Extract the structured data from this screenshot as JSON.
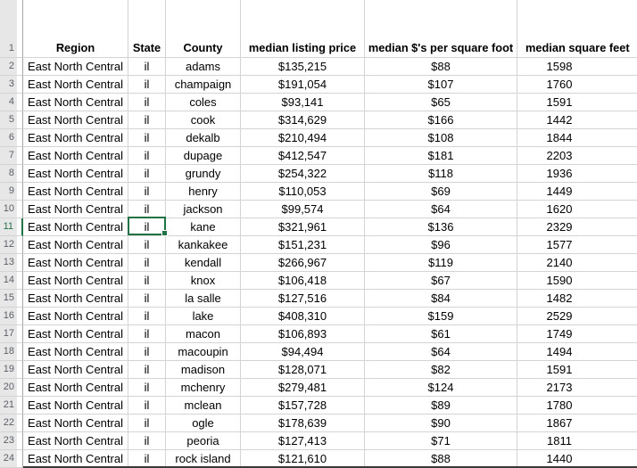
{
  "sheet": {
    "header_row_number": "1",
    "columns": [
      {
        "key": "region",
        "label": "Region"
      },
      {
        "key": "state",
        "label": "State"
      },
      {
        "key": "county",
        "label": "County"
      },
      {
        "key": "listing_price",
        "label": "median listing price"
      },
      {
        "key": "price_per_sqft",
        "label": "median $'s per square foot"
      },
      {
        "key": "square_feet",
        "label": "median square feet"
      }
    ],
    "rows": [
      {
        "n": "2",
        "region": "East North Central",
        "state": "il",
        "county": "adams",
        "listing_price": "$135,215",
        "price_per_sqft": "$88",
        "square_feet": "1598"
      },
      {
        "n": "3",
        "region": "East North Central",
        "state": "il",
        "county": "champaign",
        "listing_price": "$191,054",
        "price_per_sqft": "$107",
        "square_feet": "1760"
      },
      {
        "n": "4",
        "region": "East North Central",
        "state": "il",
        "county": "coles",
        "listing_price": "$93,141",
        "price_per_sqft": "$65",
        "square_feet": "1591"
      },
      {
        "n": "5",
        "region": "East North Central",
        "state": "il",
        "county": "cook",
        "listing_price": "$314,629",
        "price_per_sqft": "$166",
        "square_feet": "1442"
      },
      {
        "n": "6",
        "region": "East North Central",
        "state": "il",
        "county": "dekalb",
        "listing_price": "$210,494",
        "price_per_sqft": "$108",
        "square_feet": "1844"
      },
      {
        "n": "7",
        "region": "East North Central",
        "state": "il",
        "county": "dupage",
        "listing_price": "$412,547",
        "price_per_sqft": "$181",
        "square_feet": "2203"
      },
      {
        "n": "8",
        "region": "East North Central",
        "state": "il",
        "county": "grundy",
        "listing_price": "$254,322",
        "price_per_sqft": "$118",
        "square_feet": "1936"
      },
      {
        "n": "9",
        "region": "East North Central",
        "state": "il",
        "county": "henry",
        "listing_price": "$110,053",
        "price_per_sqft": "$69",
        "square_feet": "1449"
      },
      {
        "n": "10",
        "region": "East North Central",
        "state": "il",
        "county": "jackson",
        "listing_price": "$99,574",
        "price_per_sqft": "$64",
        "square_feet": "1620"
      },
      {
        "n": "11",
        "region": "East North Central",
        "state": "il",
        "county": "kane",
        "listing_price": "$321,961",
        "price_per_sqft": "$136",
        "square_feet": "2329"
      },
      {
        "n": "12",
        "region": "East North Central",
        "state": "il",
        "county": "kankakee",
        "listing_price": "$151,231",
        "price_per_sqft": "$96",
        "square_feet": "1577"
      },
      {
        "n": "13",
        "region": "East North Central",
        "state": "il",
        "county": "kendall",
        "listing_price": "$266,967",
        "price_per_sqft": "$119",
        "square_feet": "2140"
      },
      {
        "n": "14",
        "region": "East North Central",
        "state": "il",
        "county": "knox",
        "listing_price": "$106,418",
        "price_per_sqft": "$67",
        "square_feet": "1590"
      },
      {
        "n": "15",
        "region": "East North Central",
        "state": "il",
        "county": "la salle",
        "listing_price": "$127,516",
        "price_per_sqft": "$84",
        "square_feet": "1482"
      },
      {
        "n": "16",
        "region": "East North Central",
        "state": "il",
        "county": "lake",
        "listing_price": "$408,310",
        "price_per_sqft": "$159",
        "square_feet": "2529"
      },
      {
        "n": "17",
        "region": "East North Central",
        "state": "il",
        "county": "macon",
        "listing_price": "$106,893",
        "price_per_sqft": "$61",
        "square_feet": "1749"
      },
      {
        "n": "18",
        "region": "East North Central",
        "state": "il",
        "county": "macoupin",
        "listing_price": "$94,494",
        "price_per_sqft": "$64",
        "square_feet": "1494"
      },
      {
        "n": "19",
        "region": "East North Central",
        "state": "il",
        "county": "madison",
        "listing_price": "$128,071",
        "price_per_sqft": "$82",
        "square_feet": "1591"
      },
      {
        "n": "20",
        "region": "East North Central",
        "state": "il",
        "county": "mchenry",
        "listing_price": "$279,481",
        "price_per_sqft": "$124",
        "square_feet": "2173"
      },
      {
        "n": "21",
        "region": "East North Central",
        "state": "il",
        "county": "mclean",
        "listing_price": "$157,728",
        "price_per_sqft": "$89",
        "square_feet": "1780"
      },
      {
        "n": "22",
        "region": "East North Central",
        "state": "il",
        "county": "ogle",
        "listing_price": "$178,639",
        "price_per_sqft": "$90",
        "square_feet": "1867"
      },
      {
        "n": "23",
        "region": "East North Central",
        "state": "il",
        "county": "peoria",
        "listing_price": "$127,413",
        "price_per_sqft": "$71",
        "square_feet": "1811"
      },
      {
        "n": "24",
        "region": "East North Central",
        "state": "il",
        "county": "rock island",
        "listing_price": "$121,610",
        "price_per_sqft": "$88",
        "square_feet": "1440"
      }
    ],
    "selection": {
      "row": "11",
      "column": "state",
      "value": "il"
    }
  },
  "colors": {
    "selection_green": "#217346",
    "gridline": "#d4d4d4",
    "row_header_separator": "#a6a6a6",
    "row_header_bg": "#e7e7e7"
  }
}
